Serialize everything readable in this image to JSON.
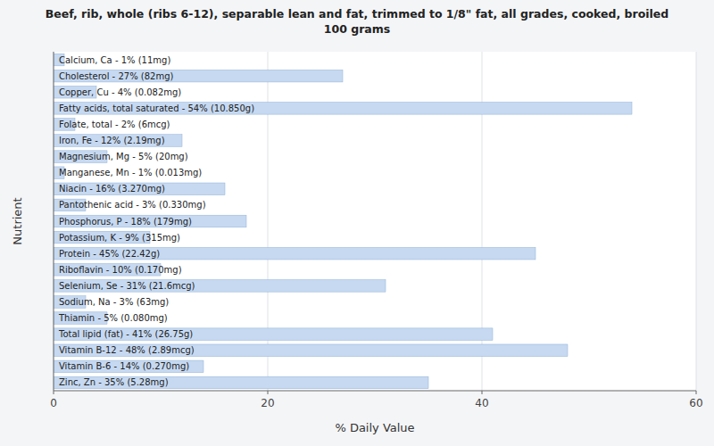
{
  "chart_data": {
    "type": "bar",
    "orientation": "horizontal",
    "title": "Beef, rib, whole (ribs 6-12), separable lean and fat, trimmed to 1/8\" fat, all grades, cooked, broiled\n100 grams",
    "x_label": "% Daily Value",
    "y_label": "Nutrient",
    "categories": [
      "Calcium, Ca - 1% (11mg)",
      "Cholesterol - 27% (82mg)",
      "Copper, Cu - 4% (0.082mg)",
      "Fatty acids, total saturated - 54% (10.850g)",
      "Folate, total - 2% (6mcg)",
      "Iron, Fe - 12% (2.19mg)",
      "Magnesium, Mg - 5% (20mg)",
      "Manganese, Mn - 1% (0.013mg)",
      "Niacin - 16% (3.270mg)",
      "Pantothenic acid - 3% (0.330mg)",
      "Phosphorus, P - 18% (179mg)",
      "Potassium, K - 9% (315mg)",
      "Protein - 45% (22.42g)",
      "Riboflavin - 10% (0.170mg)",
      "Selenium, Se - 31% (21.6mcg)",
      "Sodium, Na - 3% (63mg)",
      "Thiamin - 5% (0.080mg)",
      "Total lipid (fat) - 41% (26.75g)",
      "Vitamin B-12 - 48% (2.89mcg)",
      "Vitamin B-6 - 14% (0.270mg)",
      "Zinc, Zn - 35% (5.28mg)"
    ],
    "values": [
      1,
      27,
      4,
      54,
      2,
      12,
      5,
      1,
      16,
      3,
      18,
      9,
      45,
      10,
      31,
      3,
      5,
      41,
      48,
      14,
      35
    ],
    "color": "#c6d9f1",
    "xlim": [
      0,
      60
    ],
    "xticks": [
      0,
      20,
      40,
      60
    ],
    "grid": true,
    "tick_labels": "x"
  }
}
